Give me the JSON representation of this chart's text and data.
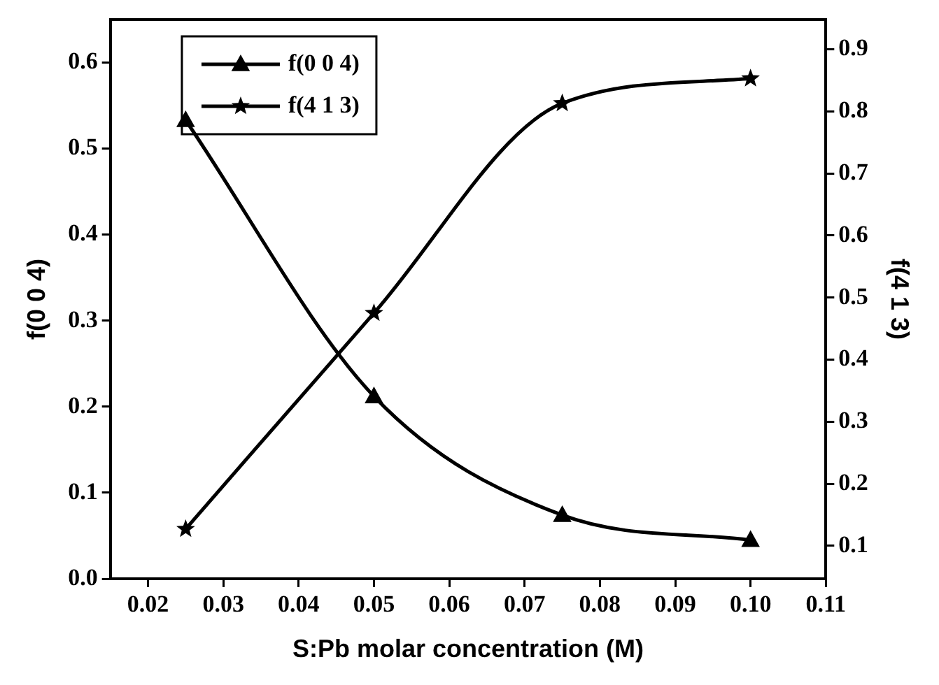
{
  "chart_data": {
    "type": "line",
    "xlabel": "S:Pb molar concentration (M)",
    "ylabel": "f(0 0 4)",
    "y2label": "f(4 1 3)",
    "x": [
      0.025,
      0.05,
      0.075,
      0.1
    ],
    "series": [
      {
        "name": "f(0 0 4)",
        "color": "#000000",
        "marker": "triangle",
        "values": [
          0.533,
          0.212,
          0.074,
          0.045
        ]
      },
      {
        "name": "f(4 1 3)",
        "color": "#000000",
        "marker": "star",
        "axis": "y2",
        "values": [
          0.127,
          0.475,
          0.813,
          0.853
        ]
      }
    ],
    "xlim": [
      0.015,
      0.11
    ],
    "xticks": [
      {
        "value": 0.02,
        "label": "0.02"
      },
      {
        "value": 0.03,
        "label": "0.03"
      },
      {
        "value": 0.04,
        "label": "0.04"
      },
      {
        "value": 0.05,
        "label": "0.05"
      },
      {
        "value": 0.06,
        "label": "0.06"
      },
      {
        "value": 0.07,
        "label": "0.07"
      },
      {
        "value": 0.08,
        "label": "0.08"
      },
      {
        "value": 0.09,
        "label": "0.09"
      },
      {
        "value": 0.1,
        "label": "0.10"
      },
      {
        "value": 0.11,
        "label": "0.11"
      }
    ],
    "ylim": [
      0,
      0.65
    ],
    "yticks": [
      {
        "value": 0,
        "label": "0.0"
      },
      {
        "value": 0.1,
        "label": "0.1"
      },
      {
        "value": 0.2,
        "label": "0.2"
      },
      {
        "value": 0.3,
        "label": "0.3"
      },
      {
        "value": 0.4,
        "label": "0.4"
      },
      {
        "value": 0.5,
        "label": "0.5"
      },
      {
        "value": 0.6,
        "label": "0.6"
      }
    ],
    "y2lim": [
      0.047,
      0.948
    ],
    "y2ticks": [
      0.1,
      0.2,
      0.3,
      0.4,
      0.5,
      0.6,
      0.7,
      0.8,
      0.9
    ],
    "grid": false,
    "legend": "top left",
    "line_style": "solid"
  }
}
